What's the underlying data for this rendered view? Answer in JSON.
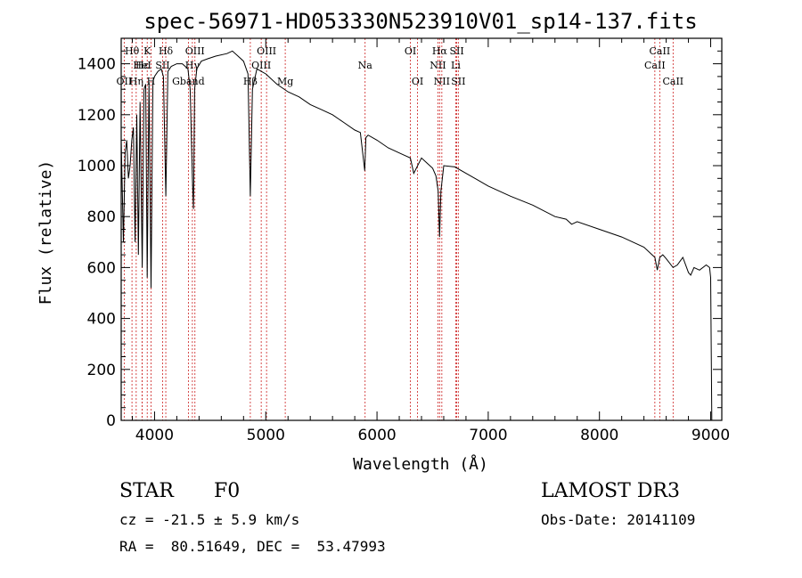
{
  "chart_data": {
    "type": "line",
    "title": "spec-56971-HD053330N523910V01_sp14-137.fits",
    "xlabel": "Wavelength (Å)",
    "ylabel": "Flux (relative)",
    "xlim": [
      3700,
      9100
    ],
    "ylim": [
      0,
      1500
    ],
    "xticks": [
      4000,
      5000,
      6000,
      7000,
      8000,
      9000
    ],
    "yticks": [
      0,
      200,
      400,
      600,
      800,
      1000,
      1200,
      1400
    ],
    "series": [
      {
        "name": "spectrum",
        "x": [
          3700,
          3720,
          3735,
          3750,
          3765,
          3780,
          3795,
          3810,
          3825,
          3840,
          3855,
          3870,
          3889,
          3905,
          3920,
          3934,
          3950,
          3968,
          3985,
          4000,
          4030,
          4060,
          4080,
          4101,
          4120,
          4150,
          4200,
          4250,
          4300,
          4320,
          4340,
          4350,
          4360,
          4380,
          4420,
          4480,
          4550,
          4650,
          4700,
          4750,
          4800,
          4840,
          4861,
          4880,
          4920,
          4960,
          5000,
          5100,
          5200,
          5300,
          5400,
          5500,
          5600,
          5700,
          5800,
          5850,
          5890,
          5900,
          5920,
          6000,
          6100,
          6200,
          6250,
          6300,
          6330,
          6400,
          6450,
          6500,
          6530,
          6550,
          6563,
          6575,
          6600,
          6700,
          6800,
          6900,
          7000,
          7200,
          7400,
          7600,
          7700,
          7750,
          7800,
          8000,
          8200,
          8400,
          8498,
          8520,
          8542,
          8570,
          8600,
          8662,
          8700,
          8750,
          8800,
          8820,
          8850,
          8900,
          8960,
          8990,
          9000,
          9010
        ],
        "y": [
          1100,
          700,
          1050,
          1100,
          950,
          1000,
          1100,
          1150,
          700,
          1200,
          650,
          1250,
          600,
          1300,
          1320,
          560,
          1330,
          520,
          1330,
          1350,
          1370,
          1380,
          1350,
          880,
          1370,
          1390,
          1400,
          1400,
          1380,
          1300,
          950,
          830,
          1300,
          1380,
          1410,
          1420,
          1430,
          1440,
          1450,
          1430,
          1410,
          1360,
          880,
          1300,
          1380,
          1370,
          1360,
          1320,
          1290,
          1270,
          1240,
          1220,
          1200,
          1170,
          1140,
          1130,
          980,
          1110,
          1120,
          1100,
          1070,
          1050,
          1040,
          1030,
          970,
          1030,
          1010,
          990,
          960,
          900,
          720,
          900,
          1000,
          995,
          970,
          945,
          920,
          880,
          845,
          800,
          790,
          770,
          780,
          750,
          720,
          680,
          640,
          590,
          640,
          650,
          635,
          600,
          610,
          640,
          580,
          570,
          600,
          590,
          610,
          600,
          560,
          0
        ]
      }
    ],
    "lines": [
      {
        "label": "Hθ",
        "x": 3797,
        "row": 1
      },
      {
        "label": "OII",
        "x": 3727,
        "row": 3
      },
      {
        "label": "Hη",
        "x": 3835,
        "row": 3
      },
      {
        "label": "Hε",
        "x": 3889,
        "row": 2
      },
      {
        "label": "HeI",
        "x": 3889,
        "row": 2
      },
      {
        "label": "K",
        "x": 3934,
        "row": 1
      },
      {
        "label": "H",
        "x": 3968,
        "row": 3
      },
      {
        "label": "Hδ",
        "x": 4101,
        "row": 1
      },
      {
        "label": "SII",
        "x": 4072,
        "row": 2
      },
      {
        "label": "Gband",
        "x": 4304,
        "row": 3
      },
      {
        "label": "OIII",
        "x": 4363,
        "row": 1
      },
      {
        "label": "Hγ",
        "x": 4340,
        "row": 2
      },
      {
        "label": "OIII",
        "x": 5007,
        "row": 1
      },
      {
        "label": "OIII",
        "x": 4959,
        "row": 2
      },
      {
        "label": "Hβ",
        "x": 4861,
        "row": 3
      },
      {
        "label": "Mg",
        "x": 5175,
        "row": 3
      },
      {
        "label": "Na",
        "x": 5893,
        "row": 2
      },
      {
        "label": "OI",
        "x": 6300,
        "row": 1
      },
      {
        "label": "OI",
        "x": 6364,
        "row": 3
      },
      {
        "label": "Hα",
        "x": 6563,
        "row": 1
      },
      {
        "label": "SII",
        "x": 6717,
        "row": 1
      },
      {
        "label": "NII",
        "x": 6548,
        "row": 2
      },
      {
        "label": "Li",
        "x": 6708,
        "row": 2
      },
      {
        "label": "NII",
        "x": 6583,
        "row": 3
      },
      {
        "label": "SII",
        "x": 6731,
        "row": 3
      },
      {
        "label": "CaII",
        "x": 8542,
        "row": 1
      },
      {
        "label": "CaII",
        "x": 8498,
        "row": 2
      },
      {
        "label": "CaII",
        "x": 8662,
        "row": 3
      }
    ]
  },
  "info": {
    "class_label": "STAR",
    "subclass": "F0",
    "cz": "cz = -21.5 ± 5.9 km/s",
    "coords": "RA =  80.51649, DEC =  53.47993",
    "survey": "LAMOST DR3",
    "obs_date": "Obs-Date: 20141109"
  },
  "colors": {
    "line_marker": "#cc2020",
    "spectrum": "#000000"
  }
}
